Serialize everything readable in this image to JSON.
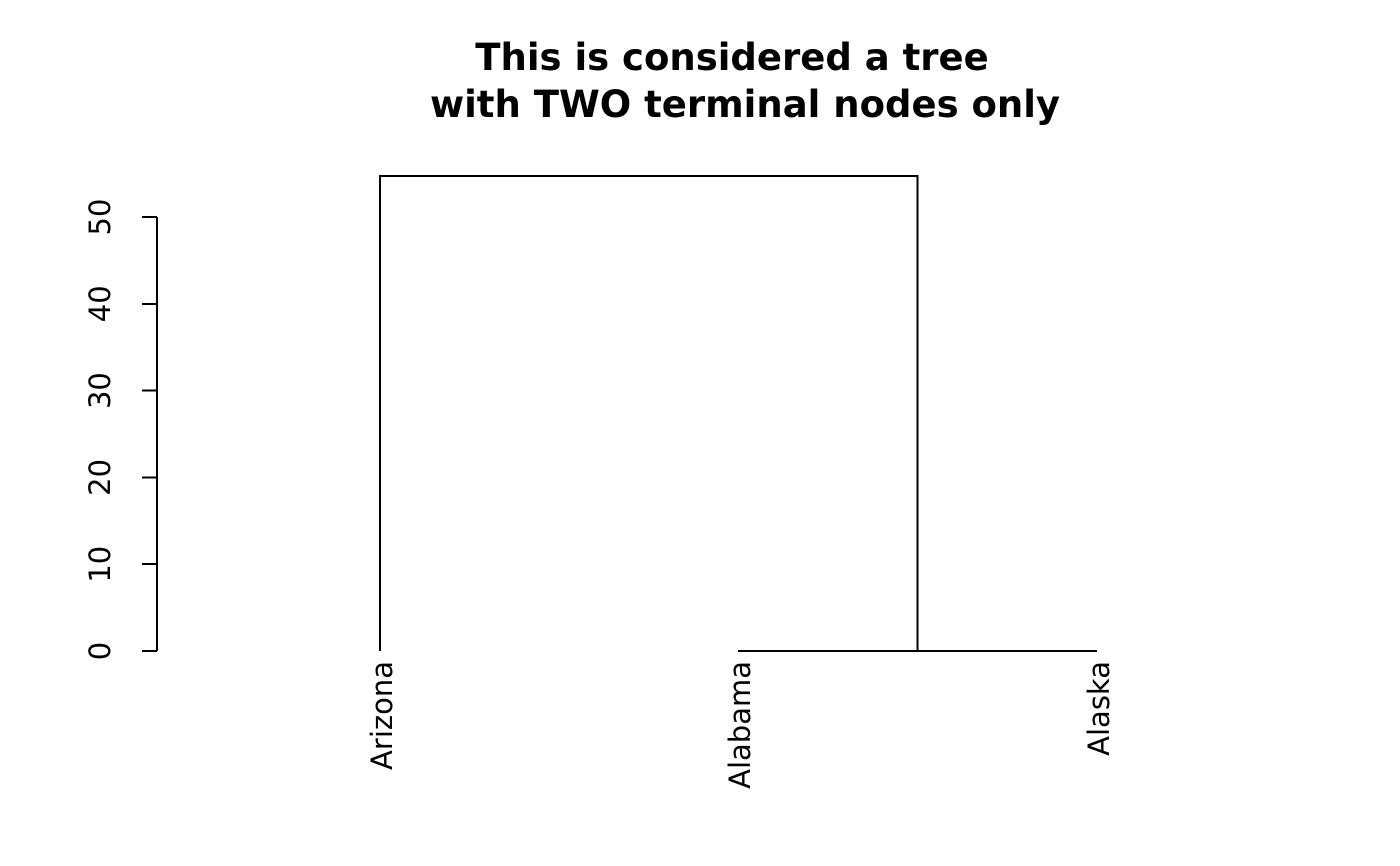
{
  "chart_data": {
    "type": "dendrogram",
    "title_lines": [
      "This is considered a tree",
      "with TWO terminal nodes only"
    ],
    "xlabel": "",
    "ylabel": "",
    "ylim": [
      0,
      50
    ],
    "yticks": [
      0,
      10,
      20,
      30,
      40,
      50
    ],
    "leaves": [
      "Arizona",
      "Alabama",
      "Alaska"
    ],
    "merges": [
      {
        "members": [
          "Alabama",
          "Alaska"
        ],
        "height": 0
      },
      {
        "members": [
          "Arizona",
          "Alabama+Alaska"
        ],
        "height": 54.7
      }
    ],
    "grid": false,
    "legend": "none",
    "line_color": "#000000"
  }
}
